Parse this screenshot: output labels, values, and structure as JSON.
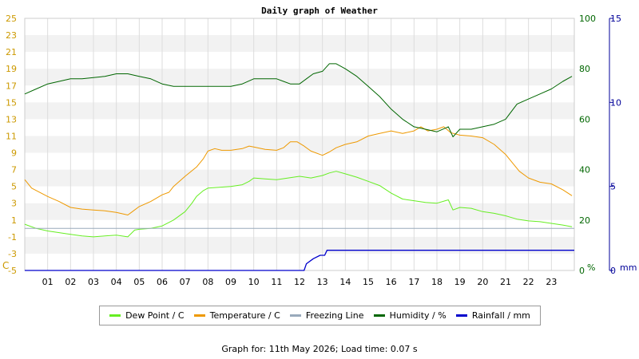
{
  "chart_data": {
    "type": "line",
    "title": "Daily graph of Weather",
    "x_ticks": [
      "01",
      "02",
      "03",
      "04",
      "05",
      "06",
      "07",
      "08",
      "09",
      "10",
      "11",
      "12",
      "13",
      "14",
      "15",
      "16",
      "17",
      "18",
      "19",
      "20",
      "21",
      "22",
      "23"
    ],
    "xlim": [
      0,
      24
    ],
    "left_axis": {
      "unit": "C",
      "ticks": [
        "25",
        "23",
        "21",
        "19",
        "17",
        "15",
        "13",
        "11",
        "9",
        "7",
        "5",
        "3",
        "1",
        "-1",
        "-3",
        "-5"
      ],
      "ylim": [
        -5,
        25
      ],
      "color": "#cc9900"
    },
    "humidity_axis": {
      "unit": "%",
      "ticks": [
        "100",
        "80",
        "60",
        "40",
        "20",
        "0"
      ],
      "ylim": [
        0,
        100
      ],
      "color": "#006600"
    },
    "rain_axis": {
      "unit": "mm",
      "ticks": [
        "15",
        "10",
        "5",
        "0"
      ],
      "ylim": [
        0,
        15
      ],
      "color": "#000099"
    },
    "series": [
      {
        "name": "Dew Point / C",
        "color": "#66ee22",
        "axis": "left",
        "points": [
          [
            0,
            0.5
          ],
          [
            0.5,
            0
          ],
          [
            1,
            -0.3
          ],
          [
            1.5,
            -0.5
          ],
          [
            2,
            -0.7
          ],
          [
            2.5,
            -0.9
          ],
          [
            3,
            -1
          ],
          [
            3.5,
            -0.9
          ],
          [
            4,
            -0.8
          ],
          [
            4.5,
            -1
          ],
          [
            4.8,
            -0.2
          ],
          [
            5,
            -0.1
          ],
          [
            5.5,
            0
          ],
          [
            6,
            0.3
          ],
          [
            6.5,
            1
          ],
          [
            7,
            2
          ],
          [
            7.3,
            3
          ],
          [
            7.5,
            3.8
          ],
          [
            7.8,
            4.5
          ],
          [
            8,
            4.8
          ],
          [
            8.5,
            4.9
          ],
          [
            9,
            5
          ],
          [
            9.5,
            5.2
          ],
          [
            9.8,
            5.6
          ],
          [
            10,
            6
          ],
          [
            10.5,
            5.9
          ],
          [
            11,
            5.8
          ],
          [
            11.5,
            6
          ],
          [
            12,
            6.2
          ],
          [
            12.5,
            6
          ],
          [
            13,
            6.3
          ],
          [
            13.3,
            6.6
          ],
          [
            13.6,
            6.8
          ],
          [
            14,
            6.5
          ],
          [
            14.5,
            6.1
          ],
          [
            15,
            5.6
          ],
          [
            15.5,
            5.1
          ],
          [
            16,
            4.2
          ],
          [
            16.5,
            3.5
          ],
          [
            17,
            3.3
          ],
          [
            17.5,
            3.1
          ],
          [
            18,
            3.0
          ],
          [
            18.5,
            3.4
          ],
          [
            18.7,
            2.2
          ],
          [
            19,
            2.5
          ],
          [
            19.5,
            2.4
          ],
          [
            20,
            2.0
          ],
          [
            20.5,
            1.8
          ],
          [
            21,
            1.5
          ],
          [
            21.5,
            1.1
          ],
          [
            22,
            0.9
          ],
          [
            22.5,
            0.8
          ],
          [
            23,
            0.6
          ],
          [
            23.5,
            0.4
          ],
          [
            23.9,
            0.2
          ]
        ]
      },
      {
        "name": "Temperature / C",
        "color": "#ee9900",
        "axis": "left",
        "points": [
          [
            0,
            5.8
          ],
          [
            0.3,
            4.8
          ],
          [
            1,
            3.8
          ],
          [
            1.5,
            3.2
          ],
          [
            2,
            2.5
          ],
          [
            2.5,
            2.3
          ],
          [
            3,
            2.2
          ],
          [
            3.5,
            2.1
          ],
          [
            4,
            1.9
          ],
          [
            4.5,
            1.6
          ],
          [
            4.7,
            2
          ],
          [
            5,
            2.6
          ],
          [
            5.5,
            3.2
          ],
          [
            6,
            4
          ],
          [
            6.3,
            4.3
          ],
          [
            6.5,
            5
          ],
          [
            7,
            6.2
          ],
          [
            7.5,
            7.3
          ],
          [
            7.8,
            8.3
          ],
          [
            8,
            9.2
          ],
          [
            8.3,
            9.5
          ],
          [
            8.6,
            9.3
          ],
          [
            9,
            9.3
          ],
          [
            9.5,
            9.5
          ],
          [
            9.8,
            9.8
          ],
          [
            10,
            9.7
          ],
          [
            10.5,
            9.4
          ],
          [
            11,
            9.3
          ],
          [
            11.3,
            9.6
          ],
          [
            11.6,
            10.3
          ],
          [
            11.9,
            10.3
          ],
          [
            12.2,
            9.8
          ],
          [
            12.5,
            9.2
          ],
          [
            13,
            8.7
          ],
          [
            13.3,
            9.1
          ],
          [
            13.6,
            9.6
          ],
          [
            14,
            10
          ],
          [
            14.5,
            10.3
          ],
          [
            15,
            11
          ],
          [
            15.5,
            11.3
          ],
          [
            16,
            11.6
          ],
          [
            16.5,
            11.3
          ],
          [
            17,
            11.6
          ],
          [
            17.3,
            12.1
          ],
          [
            17.6,
            11.6
          ],
          [
            18,
            11.8
          ],
          [
            18.3,
            12.1
          ],
          [
            18.6,
            11.4
          ],
          [
            19,
            11.1
          ],
          [
            19.5,
            11
          ],
          [
            20,
            10.8
          ],
          [
            20.5,
            10
          ],
          [
            21,
            8.8
          ],
          [
            21.3,
            7.8
          ],
          [
            21.6,
            6.8
          ],
          [
            22,
            6
          ],
          [
            22.5,
            5.5
          ],
          [
            23,
            5.3
          ],
          [
            23.5,
            4.6
          ],
          [
            23.9,
            3.9
          ]
        ]
      },
      {
        "name": "Freezing Line",
        "color": "#99aabb",
        "axis": "left",
        "points": [
          [
            0,
            0
          ],
          [
            24,
            0
          ]
        ]
      },
      {
        "name": "Humidity / %",
        "color": "#006600",
        "axis": "humidity",
        "points": [
          [
            0,
            70
          ],
          [
            0.5,
            72
          ],
          [
            1,
            74
          ],
          [
            1.5,
            75
          ],
          [
            2,
            76
          ],
          [
            2.5,
            76
          ],
          [
            3,
            76.5
          ],
          [
            3.5,
            77
          ],
          [
            4,
            78
          ],
          [
            4.5,
            78
          ],
          [
            5,
            77
          ],
          [
            5.5,
            76
          ],
          [
            6,
            74
          ],
          [
            6.5,
            73
          ],
          [
            7,
            73
          ],
          [
            7.5,
            73
          ],
          [
            8,
            73
          ],
          [
            8.5,
            73
          ],
          [
            9,
            73
          ],
          [
            9.5,
            74
          ],
          [
            10,
            76
          ],
          [
            10.5,
            76
          ],
          [
            11,
            76
          ],
          [
            11.3,
            75
          ],
          [
            11.6,
            74
          ],
          [
            12,
            74
          ],
          [
            12.3,
            76
          ],
          [
            12.6,
            78
          ],
          [
            13,
            79
          ],
          [
            13.3,
            82
          ],
          [
            13.6,
            82
          ],
          [
            14,
            80
          ],
          [
            14.5,
            77
          ],
          [
            15,
            73
          ],
          [
            15.5,
            69
          ],
          [
            16,
            64
          ],
          [
            16.5,
            60
          ],
          [
            17,
            57
          ],
          [
            17.5,
            56
          ],
          [
            18,
            55
          ],
          [
            18.5,
            57
          ],
          [
            18.7,
            53
          ],
          [
            19,
            56
          ],
          [
            19.5,
            56
          ],
          [
            20,
            57
          ],
          [
            20.5,
            58
          ],
          [
            21,
            60
          ],
          [
            21.5,
            66
          ],
          [
            22,
            68
          ],
          [
            22.5,
            70
          ],
          [
            23,
            72
          ],
          [
            23.5,
            75
          ],
          [
            23.9,
            77
          ]
        ]
      },
      {
        "name": "Rainfall / mm",
        "color": "#0000cc",
        "axis": "rain",
        "points": [
          [
            0,
            0
          ],
          [
            12.2,
            0
          ],
          [
            12.3,
            0.4
          ],
          [
            12.6,
            0.7
          ],
          [
            12.9,
            0.9
          ],
          [
            13.1,
            0.9
          ],
          [
            13.2,
            1.2
          ],
          [
            14,
            1.2
          ],
          [
            24,
            1.2
          ]
        ]
      }
    ],
    "grid": true,
    "legend_position": "bottom"
  },
  "footer_text": "Graph for: 11th May 2026; Load time: 0.07 s"
}
